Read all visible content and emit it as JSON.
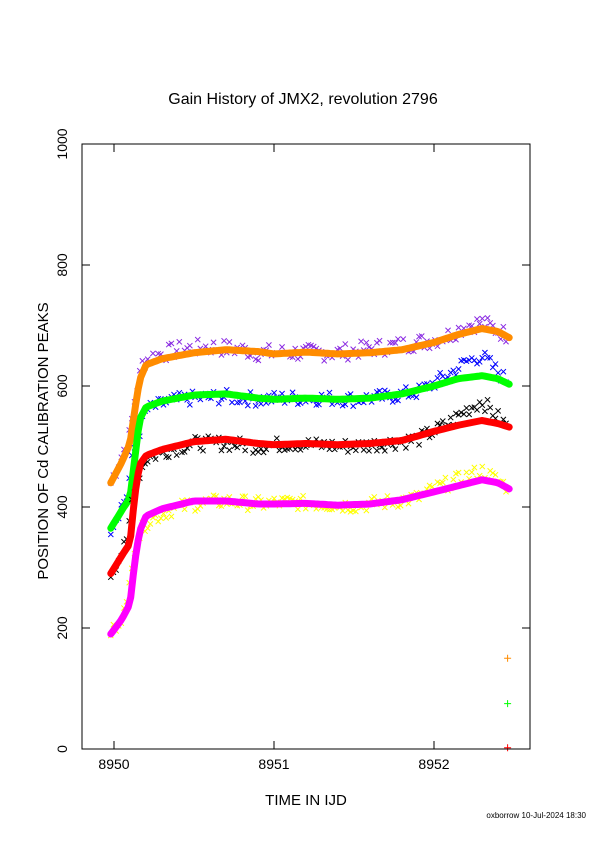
{
  "chart_data": {
    "type": "scatter",
    "title": "Gain History of JMX2, revolution 2796",
    "xlabel": "TIME IN IJD",
    "ylabel": "POSITION OF Cd CALIBRATION PEAKS",
    "credit": "oxborrow 10-Jul-2024 18:30",
    "xlim": [
      8949.8,
      8952.6
    ],
    "ylim": [
      0,
      1000
    ],
    "xticks": [
      8950,
      8951,
      8952
    ],
    "xtick_labels": [
      "8950",
      "8951",
      "8952"
    ],
    "yticks": [
      0,
      200,
      400,
      600,
      800,
      1000
    ],
    "ytick_labels": [
      "0",
      "200",
      "400",
      "600",
      "800",
      "1000"
    ],
    "grid": false,
    "series": [
      {
        "color": "#8a2be2",
        "marker": "x",
        "scatter": 14,
        "x": [
          8949.98,
          8950.1,
          8950.13,
          8950.18,
          8950.25,
          8950.4,
          8950.6,
          8950.8,
          8950.9,
          8951.0,
          8951.2,
          8951.4,
          8951.6,
          8951.8,
          8951.9,
          8952.0,
          8952.1,
          8952.2,
          8952.3,
          8952.45
        ],
        "y": [
          440,
          520,
          580,
          640,
          650,
          660,
          665,
          660,
          655,
          655,
          655,
          655,
          662,
          668,
          672,
          676,
          685,
          700,
          705,
          685
        ]
      },
      {
        "color": "#ff8c00",
        "marker": "line",
        "x": [
          8949.98,
          8950.05,
          8950.1,
          8950.13,
          8950.16,
          8950.2,
          8950.3,
          8950.5,
          8950.7,
          8950.9,
          8951.0,
          8951.2,
          8951.4,
          8951.6,
          8951.8,
          8952.0,
          8952.15,
          8952.3,
          8952.4,
          8952.47
        ],
        "y": [
          440,
          475,
          505,
          560,
          610,
          635,
          645,
          655,
          660,
          657,
          653,
          656,
          653,
          655,
          660,
          672,
          685,
          695,
          690,
          680
        ]
      },
      {
        "color": "#0000ff",
        "marker": "x",
        "scatter": 12,
        "x": [
          8949.98,
          8950.08,
          8950.12,
          8950.2,
          8950.35,
          8950.5,
          8950.7,
          8950.9,
          8951.1,
          8951.3,
          8951.5,
          8951.7,
          8951.9,
          8952.0,
          8952.1,
          8952.2,
          8952.3,
          8952.45
        ],
        "y": [
          365,
          420,
          490,
          560,
          575,
          580,
          582,
          578,
          580,
          580,
          578,
          582,
          590,
          605,
          620,
          640,
          650,
          610
        ]
      },
      {
        "color": "#00ff00",
        "marker": "line",
        "x": [
          8949.98,
          8950.05,
          8950.1,
          8950.13,
          8950.16,
          8950.2,
          8950.3,
          8950.5,
          8950.7,
          8950.9,
          8951.0,
          8951.2,
          8951.4,
          8951.6,
          8951.8,
          8952.0,
          8952.15,
          8952.3,
          8952.4,
          8952.47
        ],
        "y": [
          365,
          395,
          415,
          480,
          545,
          565,
          575,
          585,
          587,
          580,
          578,
          580,
          578,
          580,
          587,
          600,
          612,
          617,
          612,
          603
        ]
      },
      {
        "color": "#000000",
        "marker": "x",
        "scatter": 12,
        "x": [
          8949.98,
          8950.08,
          8950.12,
          8950.2,
          8950.35,
          8950.5,
          8950.7,
          8950.9,
          8951.1,
          8951.3,
          8951.5,
          8951.7,
          8951.9,
          8952.0,
          8952.1,
          8952.2,
          8952.3,
          8952.45
        ],
        "y": [
          290,
          340,
          430,
          480,
          495,
          505,
          505,
          500,
          505,
          502,
          500,
          505,
          512,
          525,
          540,
          560,
          575,
          535
        ]
      },
      {
        "color": "#ff0000",
        "marker": "line",
        "x": [
          8949.98,
          8950.05,
          8950.1,
          8950.13,
          8950.16,
          8950.2,
          8950.3,
          8950.5,
          8950.7,
          8950.9,
          8951.0,
          8951.2,
          8951.4,
          8951.6,
          8951.8,
          8952.0,
          8952.15,
          8952.3,
          8952.4,
          8952.47
        ],
        "y": [
          290,
          320,
          340,
          420,
          470,
          485,
          495,
          508,
          512,
          505,
          503,
          505,
          503,
          505,
          510,
          525,
          535,
          543,
          538,
          532
        ]
      },
      {
        "color": "#ffff00",
        "marker": "x",
        "scatter": 12,
        "x": [
          8949.98,
          8950.08,
          8950.12,
          8950.2,
          8950.35,
          8950.5,
          8950.7,
          8950.9,
          8951.1,
          8951.3,
          8951.5,
          8951.7,
          8951.9,
          8952.0,
          8952.1,
          8952.2,
          8952.3,
          8952.45
        ],
        "y": [
          190,
          235,
          330,
          375,
          395,
          405,
          410,
          405,
          408,
          405,
          402,
          408,
          415,
          430,
          440,
          450,
          460,
          435
        ]
      },
      {
        "color": "#ff00ff",
        "marker": "line",
        "x": [
          8949.98,
          8950.05,
          8950.1,
          8950.13,
          8950.16,
          8950.2,
          8950.3,
          8950.5,
          8950.7,
          8950.9,
          8951.0,
          8951.2,
          8951.4,
          8951.6,
          8951.8,
          8952.0,
          8952.15,
          8952.3,
          8952.4,
          8952.47
        ],
        "y": [
          190,
          215,
          240,
          310,
          360,
          385,
          397,
          410,
          410,
          405,
          405,
          406,
          403,
          405,
          412,
          425,
          435,
          445,
          440,
          430
        ]
      },
      {
        "color": "#ff8c00",
        "marker": "+",
        "x": [
          8952.46
        ],
        "y": [
          150
        ]
      },
      {
        "color": "#00ff00",
        "marker": "+",
        "x": [
          8952.46
        ],
        "y": [
          75
        ]
      },
      {
        "color": "#ff0000",
        "marker": "+",
        "x": [
          8952.46
        ],
        "y": [
          2
        ]
      }
    ]
  }
}
